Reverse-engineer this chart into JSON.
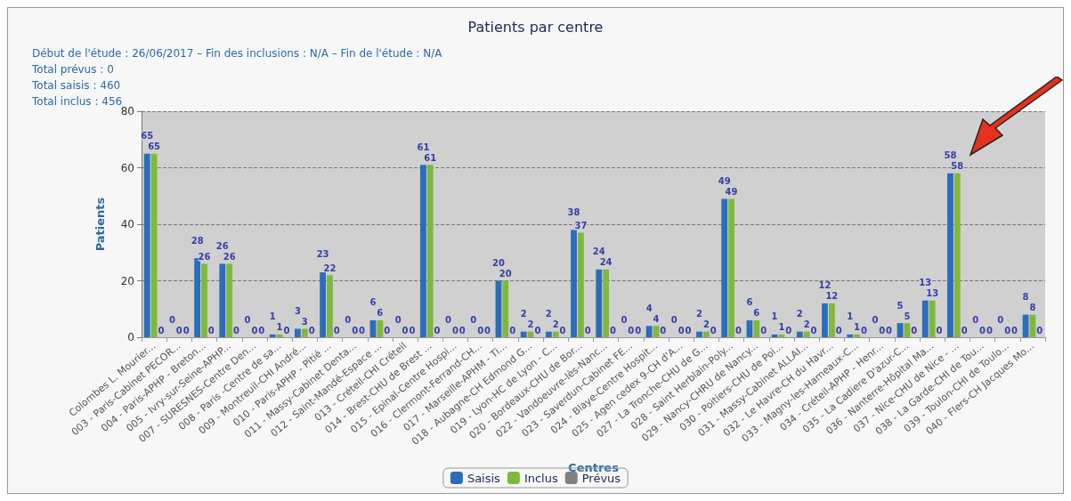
{
  "chart_data": {
    "type": "bar",
    "title": "Patients par centre",
    "subtitle": "Début de l'étude : 26/06/2017 – Fin des inclusions : N/A – Fin de l'étude : N/A",
    "annotations": [
      "Total prévus : 0",
      "Total saisis : 460",
      "Total inclus : 456"
    ],
    "xlabel": "Centres",
    "ylabel": "Patients",
    "categories": [
      "Colombes L. Mourier...",
      "003 - Paris-Cabinet PECOR...",
      "004 - Paris-APHP - Breton...",
      "005 - Ivry-sur-Seine-APHP...",
      "007 - SURESNES-Centre Den...",
      "008 - Paris -Centre de sa...",
      "009 - Montreuil-CHI André...",
      "010 - Paris-APHP - Pitié ...",
      "011 - Massy-Cabinet Denta...",
      "012 - Saint-Mandé-Espace ...",
      "013 - Créteil-CHI Créteil",
      "014 - Brest-CHU de Brest ...",
      "015 - Epinal-Centre Hospi...",
      "016 - Clermont-Ferrand-CH...",
      "017 - Marseille-APHM - Ti...",
      "018 - Aubagne-CH Edmond G...",
      "019 - Lyon-HC de Lyon - C...",
      "020 - Bordeaux-CHU de Bor...",
      "022 - Vandoeuvre-lès-Nanc...",
      "023 - Saverdun-Cabinet FE...",
      "024 - Blaye-Centre Hospit...",
      "025 - Agen cedex 9-CH d'A...",
      "027 - La Tronche-CHU de G...",
      "028 - Saint Herblain-Poly...",
      "029 - Nancy-CHRU de Nancy...",
      "030 - Poitiers-CHU de Poi...",
      "031 - Massy-Cabinet ALLAI...",
      "032 - Le Havre-CH du Havr...",
      "033 - Magny-les-Hameaux-C...",
      "034 - Créteil-APHP - Henr...",
      "035 - La Cadiere D'azur-C...",
      "036 - Nanterre-Hôpital Ma...",
      "037 - Nice-CHU de Nice - ...",
      "038 - La Garde-CHI de Tou...",
      "039 - Toulon-CHI de Toulo...",
      "040 - Flers-CH Jacques Mo..."
    ],
    "series": [
      {
        "name": "Saisis",
        "color": "#2a6ebb",
        "values": [
          65,
          0,
          28,
          26,
          0,
          1,
          3,
          23,
          0,
          6,
          0,
          61,
          0,
          0,
          20,
          2,
          2,
          38,
          24,
          0,
          4,
          0,
          2,
          49,
          6,
          1,
          2,
          12,
          1,
          0,
          5,
          13,
          58,
          0,
          0,
          8
        ]
      },
      {
        "name": "Inclus",
        "color": "#80b83c",
        "values": [
          65,
          0,
          26,
          26,
          0,
          1,
          3,
          22,
          0,
          6,
          0,
          61,
          0,
          0,
          20,
          2,
          2,
          37,
          24,
          0,
          4,
          0,
          2,
          49,
          6,
          1,
          2,
          12,
          1,
          0,
          5,
          13,
          58,
          0,
          0,
          8
        ]
      },
      {
        "name": "Prévus",
        "color": "#808080",
        "values": [
          0,
          0,
          0,
          0,
          0,
          0,
          0,
          0,
          0,
          0,
          0,
          0,
          0,
          0,
          0,
          0,
          0,
          0,
          0,
          0,
          0,
          0,
          0,
          0,
          0,
          0,
          0,
          0,
          0,
          0,
          0,
          0,
          0,
          0,
          0,
          0
        ]
      }
    ],
    "ylim": [
      0,
      80
    ],
    "yticks": [
      0,
      20,
      40,
      60,
      80
    ],
    "grid": "y",
    "legend": "bottom",
    "data_labels": true
  }
}
